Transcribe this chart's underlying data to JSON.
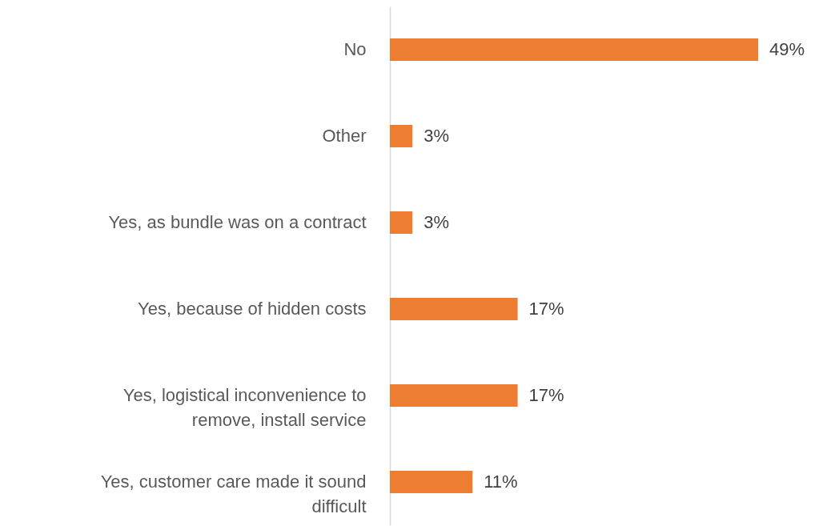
{
  "chart_data": {
    "type": "bar",
    "orientation": "horizontal",
    "categories": [
      "No",
      "Other",
      "Yes, as bundle was on a contract",
      "Yes, because of hidden costs",
      "Yes, logistical inconvenience to remove, install service",
      "Yes, customer care made it sound difficult"
    ],
    "values": [
      49,
      3,
      3,
      17,
      17,
      11
    ],
    "value_labels": [
      "49%",
      "3%",
      "3%",
      "17%",
      "17%",
      "11%"
    ],
    "color": "#ed7d31",
    "grid": false
  }
}
